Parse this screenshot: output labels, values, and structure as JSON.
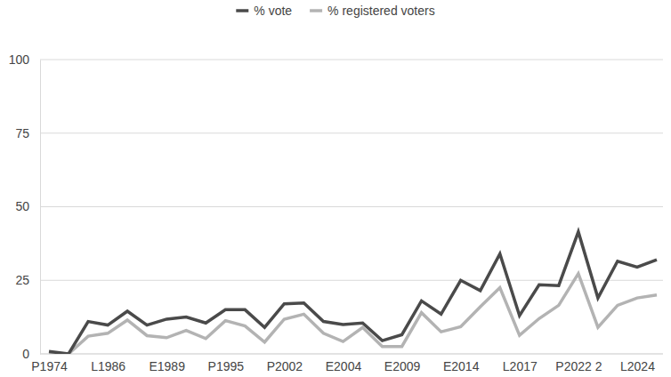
{
  "chart_data": {
    "type": "line",
    "categories": [
      "P1974",
      null,
      null,
      "L1986",
      null,
      null,
      "E1989",
      null,
      null,
      "P1995",
      null,
      null,
      "P2002",
      null,
      null,
      "E2004",
      null,
      null,
      "E2009",
      null,
      null,
      "E2014",
      null,
      null,
      "L2017",
      null,
      null,
      "P2022 2",
      null,
      null,
      "L2024",
      null
    ],
    "series": [
      {
        "name": "% vote",
        "color": "#4a4a4a",
        "values": [
          0.8,
          0,
          11,
          9.8,
          14.5,
          9.8,
          11.8,
          12.5,
          10.5,
          15,
          15,
          9,
          17,
          17.3,
          11,
          10,
          10.5,
          4.5,
          6.5,
          18,
          13.5,
          25,
          21.5,
          34,
          13,
          23.5,
          23.2,
          41.5,
          19,
          31.5,
          29.5,
          32
        ]
      },
      {
        "name": "% registered voters",
        "color": "#b3b3b3",
        "values": [
          0.3,
          0,
          6,
          7,
          11.5,
          6.2,
          5.5,
          8,
          5.2,
          11.3,
          9.5,
          4,
          11.8,
          13.5,
          7,
          4.2,
          9,
          2.5,
          2.5,
          14,
          7.5,
          9.2,
          16,
          22.5,
          6.3,
          12,
          16.5,
          27.3,
          9,
          16.5,
          19,
          20
        ]
      }
    ],
    "ylim": [
      0,
      100
    ],
    "yticks": [
      0,
      25,
      50,
      75,
      100
    ],
    "grid": true,
    "legend": "top"
  }
}
